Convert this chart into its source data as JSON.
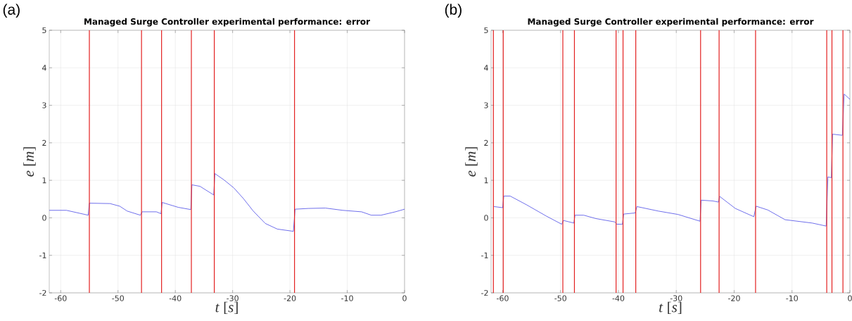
{
  "chart_data": [
    {
      "type": "line",
      "title": "Managed Surge Controller experimental performance: error",
      "xlabel": "*t* [*s*]",
      "ylabel": "*e* [*m*]",
      "annotations": [
        "(a)"
      ],
      "x": [
        -62,
        -59,
        -55.2,
        -55.0,
        -51.4,
        -49.7,
        -48.4,
        -46.1,
        -45.8,
        -43.3,
        -42.5,
        -42.3,
        -39.5,
        -37.3,
        -37.1,
        -35.7,
        -33.3,
        -33.1,
        -31.5,
        -29.8,
        -28.1,
        -26.4,
        -24.3,
        -22.2,
        -19.4,
        -19.1,
        -16.8,
        -13.8,
        -10.8,
        -7.5,
        -5.8,
        -4.1,
        -1.6,
        0
      ],
      "series": [
        {
          "color": "#4a4ae6",
          "values": [
            0.2,
            0.2,
            0.07,
            0.39,
            0.38,
            0.31,
            0.18,
            0.07,
            0.16,
            0.16,
            0.11,
            0.41,
            0.28,
            0.22,
            0.88,
            0.84,
            0.61,
            1.18,
            1.01,
            0.8,
            0.51,
            0.18,
            -0.15,
            -0.3,
            -0.36,
            0.23,
            0.25,
            0.26,
            0.2,
            0.16,
            0.07,
            0.07,
            0.16,
            0.23
          ]
        }
      ],
      "ref_lines": [
        {
          "axis": "x",
          "value": -55.0,
          "color": "#e32020"
        },
        {
          "axis": "x",
          "value": -45.9,
          "color": "#e32020"
        },
        {
          "axis": "x",
          "value": -42.4,
          "color": "#e32020"
        },
        {
          "axis": "x",
          "value": -37.2,
          "color": "#e32020"
        },
        {
          "axis": "x",
          "value": -33.2,
          "color": "#e32020"
        },
        {
          "axis": "x",
          "value": -19.2,
          "color": "#e32020"
        }
      ],
      "xlim": [
        -62,
        0
      ],
      "ylim": [
        -2,
        5
      ],
      "xticks": [
        -60,
        -50,
        -40,
        -30,
        -20,
        -10,
        0
      ],
      "yticks": [
        -2,
        -1,
        0,
        1,
        2,
        3,
        4,
        5
      ],
      "grid": true
    },
    {
      "type": "line",
      "title": "Managed Surge Controller experimental performance: error",
      "xlabel": "*t* [*s*]",
      "ylabel": "*e* [*m*]",
      "annotations": [
        "(b)"
      ],
      "x": [
        -61.5,
        -60.0,
        -59.8,
        -58.7,
        -55.9,
        -52.5,
        -49.8,
        -49.5,
        -47.7,
        -47.5,
        -46.0,
        -43.9,
        -40.6,
        -40.3,
        -39.3,
        -39.1,
        -37.1,
        -36.8,
        -33.1,
        -29.7,
        -25.9,
        -25.7,
        -23.7,
        -22.7,
        -22.5,
        -19.8,
        -16.6,
        -16.2,
        -14.2,
        -11.2,
        -6.5,
        -4.1,
        -3.8,
        -3.2,
        -3.0,
        -1.3,
        -1.0,
        0
      ],
      "series": [
        {
          "color": "#4a4ae6",
          "values": [
            0.3,
            0.27,
            0.58,
            0.58,
            0.35,
            0.05,
            -0.17,
            -0.07,
            -0.14,
            0.07,
            0.07,
            -0.02,
            -0.11,
            -0.17,
            -0.17,
            0.1,
            0.13,
            0.3,
            0.18,
            0.09,
            -0.09,
            0.47,
            0.45,
            0.42,
            0.57,
            0.25,
            0.03,
            0.31,
            0.21,
            -0.05,
            -0.14,
            -0.22,
            1.09,
            1.07,
            2.23,
            2.2,
            3.3,
            3.16
          ]
        }
      ],
      "ref_lines": [
        {
          "axis": "x",
          "value": -61.6,
          "color": "#e32020"
        },
        {
          "axis": "x",
          "value": -59.9,
          "color": "#e32020"
        },
        {
          "axis": "x",
          "value": -49.6,
          "color": "#e32020"
        },
        {
          "axis": "x",
          "value": -47.6,
          "color": "#e32020"
        },
        {
          "axis": "x",
          "value": -40.4,
          "color": "#e32020"
        },
        {
          "axis": "x",
          "value": -39.2,
          "color": "#e32020"
        },
        {
          "axis": "x",
          "value": -37.0,
          "color": "#e32020"
        },
        {
          "axis": "x",
          "value": -25.8,
          "color": "#e32020"
        },
        {
          "axis": "x",
          "value": -22.6,
          "color": "#e32020"
        },
        {
          "axis": "x",
          "value": -16.3,
          "color": "#e32020"
        },
        {
          "axis": "x",
          "value": -4.0,
          "color": "#e32020"
        },
        {
          "axis": "x",
          "value": -3.1,
          "color": "#e32020"
        },
        {
          "axis": "x",
          "value": -1.2,
          "color": "#e32020"
        }
      ],
      "xlim": [
        -62,
        0
      ],
      "ylim": [
        -2,
        5
      ],
      "xticks": [
        -60,
        -50,
        -40,
        -30,
        -20,
        -10,
        0
      ],
      "yticks": [
        -2,
        -1,
        0,
        1,
        2,
        3,
        4,
        5
      ],
      "grid": true
    }
  ]
}
